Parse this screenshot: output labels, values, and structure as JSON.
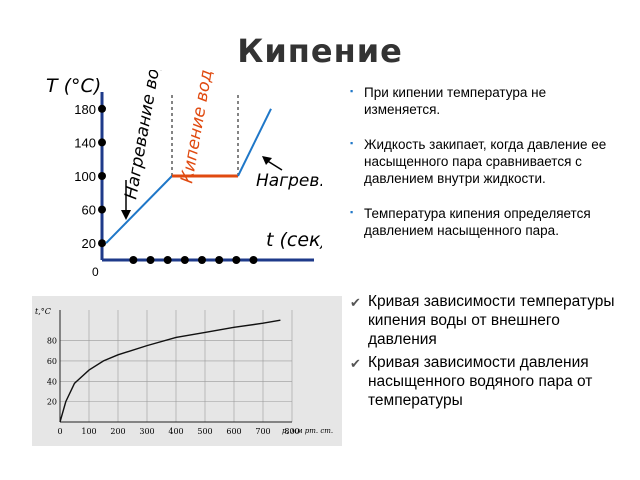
{
  "slide": {
    "title": "Кипение",
    "bullets": [
      "При кипении температура не изменяется.",
      "Жидкость закипает, когда давление ее насыщенного пара сравнивается с давлением внутри жидкости.",
      "Температура кипения определяется давлением насыщенного пара."
    ],
    "check_items": [
      "Кривая зависимости температуры кипения воды от внешнего давления",
      "Кривая зависимости давления насыщенного водяного пара от температуры"
    ]
  },
  "colors": {
    "heating": "#1f77c8",
    "boiling": "#e04a10",
    "axis": "#1e3a8a",
    "text": "#000000"
  },
  "chart_data": [
    {
      "type": "line",
      "ylabel": "T (°C)",
      "xlabel": "t (сек)",
      "yticks": [
        20,
        60,
        100,
        140,
        180
      ],
      "x_origin_label": "0",
      "ylim": [
        0,
        200
      ],
      "series": [
        {
          "name": "Нагревание воды",
          "x": [
            0,
            3
          ],
          "y": [
            20,
            100
          ]
        },
        {
          "name": "Кипение воды",
          "x": [
            3,
            6
          ],
          "y": [
            100,
            100
          ]
        },
        {
          "name": "Нагрев. пара",
          "x": [
            6,
            7.5
          ],
          "y": [
            100,
            180
          ]
        }
      ],
      "annotations": [
        "Нагревание воды",
        "Кипение воды",
        "Нагрев. пара"
      ],
      "grid": false
    },
    {
      "type": "line",
      "ylabel": "t,°C",
      "xlabel": "p, мм рт. ст.",
      "xticks": [
        0,
        100,
        200,
        300,
        400,
        500,
        600,
        700,
        800
      ],
      "yticks": [
        20,
        40,
        60,
        80
      ],
      "xlim": [
        0,
        800
      ],
      "ylim": [
        0,
        110
      ],
      "series": [
        {
          "x": [
            0,
            20,
            50,
            100,
            150,
            200,
            300,
            400,
            500,
            600,
            700,
            760
          ],
          "y": [
            0,
            20,
            38,
            51,
            60,
            66,
            75,
            83,
            88,
            93,
            97,
            100
          ]
        }
      ],
      "grid": true
    }
  ]
}
